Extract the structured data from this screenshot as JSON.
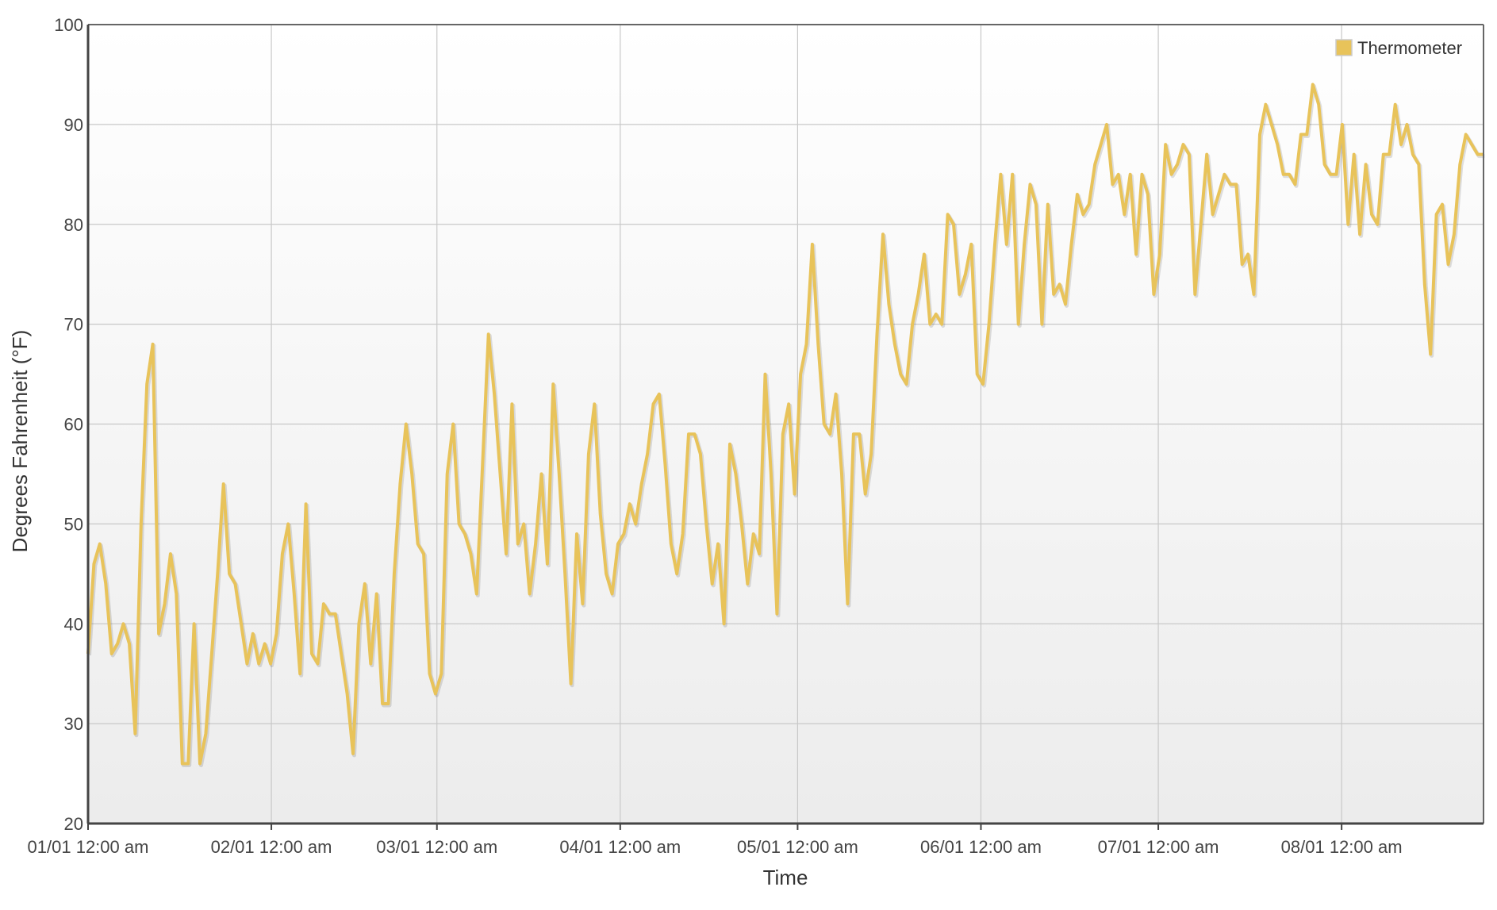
{
  "chart_data": {
    "type": "line",
    "title": "",
    "xlabel": "Time",
    "ylabel": "Degrees Fahrenheit (°F)",
    "ylim": [
      20,
      100
    ],
    "y_ticks": [
      20,
      30,
      40,
      50,
      60,
      70,
      80,
      90,
      100
    ],
    "x_ticks": [
      "01/01 12:00 am",
      "02/01 12:00 am",
      "03/01 12:00 am",
      "04/01 12:00 am",
      "05/01 12:00 am",
      "06/01 12:00 am",
      "07/01 12:00 am",
      "08/01 12:00 am"
    ],
    "xlim": [
      "01/01",
      "08/25"
    ],
    "grid": true,
    "legend_position": "top-right",
    "series_color": "#e8c35a",
    "series": [
      {
        "name": "Thermometer",
        "x_start": "01/01",
        "x_end": "08/25",
        "values": [
          37,
          46,
          48,
          44,
          37,
          38,
          40,
          38,
          29,
          50,
          64,
          68,
          39,
          42,
          47,
          43,
          26,
          26,
          40,
          26,
          29,
          37,
          45,
          54,
          45,
          44,
          40,
          36,
          39,
          36,
          38,
          36,
          39,
          47,
          50,
          43,
          35,
          52,
          37,
          36,
          42,
          41,
          41,
          37,
          33,
          27,
          40,
          44,
          36,
          43,
          32,
          32,
          45,
          54,
          60,
          55,
          48,
          47,
          35,
          33,
          35,
          55,
          60,
          50,
          49,
          47,
          43,
          56,
          69,
          63,
          55,
          47,
          62,
          48,
          50,
          43,
          48,
          55,
          46,
          64,
          55,
          45,
          34,
          49,
          42,
          57,
          62,
          51,
          45,
          43,
          48,
          49,
          52,
          50,
          54,
          57,
          62,
          63,
          56,
          48,
          45,
          49,
          59,
          59,
          57,
          50,
          44,
          48,
          40,
          58,
          55,
          50,
          44,
          49,
          47,
          65,
          55,
          41,
          59,
          62,
          53,
          65,
          68,
          78,
          68,
          60,
          59,
          63,
          55,
          42,
          59,
          59,
          53,
          57,
          69,
          79,
          72,
          68,
          65,
          64,
          70,
          73,
          77,
          70,
          71,
          70,
          81,
          80,
          73,
          75,
          78,
          65,
          64,
          70,
          78,
          85,
          78,
          85,
          70,
          78,
          84,
          82,
          70,
          82,
          73,
          74,
          72,
          78,
          83,
          81,
          82,
          86,
          88,
          90,
          84,
          85,
          81,
          85,
          77,
          85,
          83,
          73,
          77,
          88,
          85,
          86,
          88,
          87,
          73,
          80,
          87,
          81,
          83,
          85,
          84,
          84,
          76,
          77,
          73,
          89,
          92,
          90,
          88,
          85,
          85,
          84,
          89,
          89,
          94,
          92,
          86,
          85,
          85,
          90,
          80,
          87,
          79,
          86,
          81,
          80,
          87,
          87,
          92,
          88,
          90,
          87,
          86,
          74,
          67,
          81,
          82,
          76,
          79,
          86,
          89,
          88,
          87,
          87
        ]
      }
    ]
  }
}
